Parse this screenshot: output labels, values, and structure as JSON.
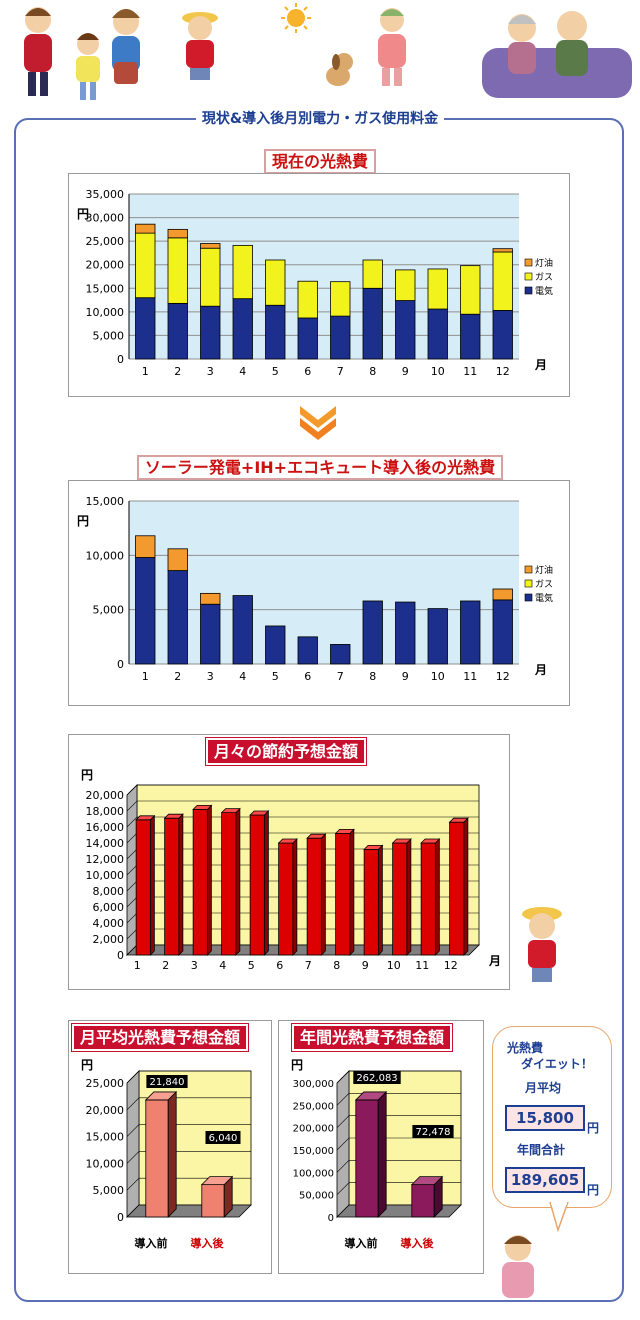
{
  "section_title": "現状&導入後月別電力・ガス使用料金",
  "charts": {
    "current": {
      "title": "現在の光熱費",
      "chart_data": {
        "type": "bar",
        "stacked": true,
        "ylabel": "円",
        "xlabel": "月",
        "categories": [
          "1",
          "2",
          "3",
          "4",
          "5",
          "6",
          "7",
          "8",
          "9",
          "10",
          "11",
          "12"
        ],
        "yticks": [
          "35,000",
          "30,000",
          "25,000",
          "20,000",
          "15,000",
          "10,000",
          "5,000",
          "0"
        ],
        "ylim": [
          0,
          35000
        ],
        "legend": "right",
        "series": [
          {
            "name": "電気",
            "color": "#1c2f8c",
            "values": [
              13000,
              11800,
              11200,
              12800,
              11400,
              8700,
              9100,
              15000,
              12400,
              10600,
              9500,
              10300
            ]
          },
          {
            "name": "ガス",
            "color": "#f2f21c",
            "values": [
              13700,
              13900,
              12300,
              11300,
              9600,
              7800,
              7300,
              6000,
              6500,
              8500,
              10300,
              12400
            ]
          },
          {
            "name": "灯油",
            "color": "#f29a2e",
            "values": [
              1900,
              1800,
              1000,
              0,
              0,
              0,
              0,
              0,
              0,
              0,
              0,
              700
            ]
          }
        ]
      }
    },
    "after": {
      "title": "ソーラー発電+IH+エコキュート導入後の光熱費",
      "chart_data": {
        "type": "bar",
        "stacked": true,
        "ylabel": "円",
        "xlabel": "月",
        "categories": [
          "1",
          "2",
          "3",
          "4",
          "5",
          "6",
          "7",
          "8",
          "9",
          "10",
          "11",
          "12"
        ],
        "yticks": [
          "15,000",
          "10,000",
          "5,000",
          "0"
        ],
        "ylim": [
          0,
          15000
        ],
        "legend": "right",
        "series": [
          {
            "name": "電気",
            "color": "#1c2f8c",
            "values": [
              9800,
              8600,
              5500,
              6300,
              3500,
              2500,
              1800,
              5800,
              5700,
              5100,
              5800,
              5900
            ]
          },
          {
            "name": "ガス",
            "color": "#f2f21c",
            "values": [
              0,
              0,
              0,
              0,
              0,
              0,
              0,
              0,
              0,
              0,
              0,
              0
            ]
          },
          {
            "name": "灯油",
            "color": "#f29a2e",
            "values": [
              2000,
              2000,
              1000,
              0,
              0,
              0,
              0,
              0,
              0,
              0,
              0,
              1000
            ]
          }
        ]
      }
    },
    "savings": {
      "title": "月々の節約予想金額",
      "chart_data": {
        "type": "bar",
        "ylabel": "円",
        "xlabel": "月",
        "categories": [
          "1",
          "2",
          "3",
          "4",
          "5",
          "6",
          "7",
          "8",
          "9",
          "10",
          "11",
          "12"
        ],
        "yticks": [
          "20,000",
          "18,000",
          "16,000",
          "14,000",
          "12,000",
          "10,000",
          "8,000",
          "6,000",
          "4,000",
          "2,000",
          "0"
        ],
        "ylim": [
          0,
          20000
        ],
        "values": [
          16900,
          17100,
          18200,
          17800,
          17500,
          14000,
          14600,
          15200,
          13200,
          14000,
          14000,
          16600
        ],
        "color": "#dd0000",
        "plot_bg": "#fbf6a6"
      }
    },
    "monthly_avg": {
      "title": "月平均光熱費予想金額",
      "chart_data": {
        "type": "bar",
        "ylabel": "円",
        "categories": [
          "導入前",
          "導入後"
        ],
        "values": [
          21840,
          6040
        ],
        "data_labels": [
          "21,840",
          "6,040"
        ],
        "yticks": [
          "25,000",
          "20,000",
          "15,000",
          "10,000",
          "5,000",
          "0"
        ],
        "ylim": [
          0,
          25000
        ],
        "color": "#f08070",
        "plot_bg": "#fbf6a6"
      }
    },
    "annual": {
      "title": "年間光熱費予想金額",
      "chart_data": {
        "type": "bar",
        "ylabel": "円",
        "categories": [
          "導入前",
          "導入後"
        ],
        "values": [
          262083,
          72478
        ],
        "data_labels": [
          "262,083",
          "72,478"
        ],
        "yticks": [
          "300,000",
          "250,000",
          "200,000",
          "150,000",
          "100,000",
          "50,000",
          "0"
        ],
        "ylim": [
          0,
          300000
        ],
        "color": "#8b1a5c",
        "plot_bg": "#fbf6a6"
      }
    }
  },
  "callout": {
    "title_line1": "光熱費",
    "title_line2": "ダイエット！",
    "monthly_label": "月平均",
    "monthly_value": "15,800",
    "annual_label": "年間合計",
    "annual_value": "189,605",
    "unit": "円"
  }
}
